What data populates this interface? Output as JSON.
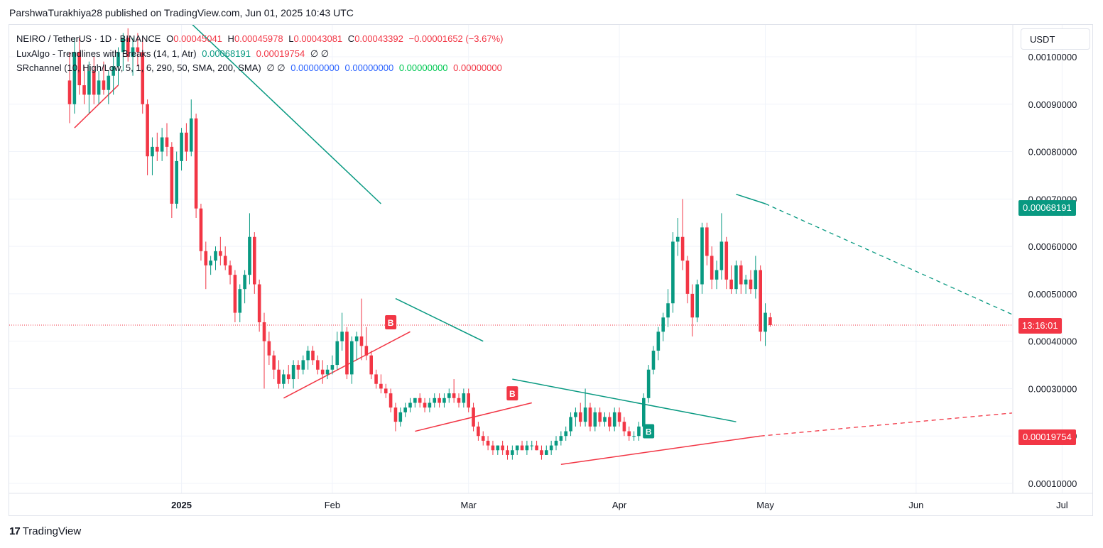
{
  "header": {
    "published_text": "ParshwaTurakhiya28 published on TradingView.com, Jun 01, 2025 10:43 UTC"
  },
  "legend": {
    "symbol": "NEIRO / TetherUS · 1D · BINANCE",
    "o_label": "O",
    "o_value": "0.00045041",
    "h_label": "H",
    "h_value": "0.00045978",
    "l_label": "L",
    "l_value": "0.00043081",
    "c_label": "C",
    "c_value": "0.00043392",
    "change": "−0.00001652 (−3.67%)",
    "indicator1_name": "LuxAlgo - Trendlines with Breaks (14, 1, Atr)",
    "indicator1_v1": "0.00068191",
    "indicator1_v2": "0.00019754",
    "indicator1_na": "∅ ∅",
    "indicator2_name": "SRchannel (10, High/Low, 5, 1, 6, 290, 50, SMA, 200, SMA)",
    "indicator2_na": "∅ ∅",
    "indicator2_v1": "0.00000000",
    "indicator2_v2": "0.00000000",
    "indicator2_v3": "0.00000000",
    "indicator2_v4": "0.00000000"
  },
  "currency": "USDT",
  "price_tags": {
    "upper_trendline": "0.00068191",
    "countdown": "13:16:01",
    "lower_trendline": "0.00019754"
  },
  "footer": {
    "brand": "TradingView",
    "brand_mark": "17"
  },
  "colors": {
    "up": "#089981",
    "down": "#f23645",
    "grid": "#f0f3fa",
    "teal_tag": "#089981",
    "red_tag": "#f23645"
  },
  "chart_data": {
    "type": "candlestick",
    "title": "NEIRO / TetherUS · 1D · BINANCE",
    "ylim": [
      7e-05,
      0.00106
    ],
    "y_ticks": [
      "0.00010000",
      "0.00020000",
      "0.00030000",
      "0.00040000",
      "0.00050000",
      "0.00060000",
      "0.00070000",
      "0.00080000",
      "0.00090000",
      "0.00100000"
    ],
    "y_tick_values": [
      0.0001,
      0.0002,
      0.0003,
      0.0004,
      0.0005,
      0.0006,
      0.0007,
      0.0008,
      0.0009,
      0.001
    ],
    "x_ticks": [
      {
        "label": "2025",
        "day": 23,
        "bold": true
      },
      {
        "label": "Feb",
        "day": 54,
        "bold": false
      },
      {
        "label": "Mar",
        "day": 82,
        "bold": false
      },
      {
        "label": "Apr",
        "day": 113,
        "bold": false
      },
      {
        "label": "May",
        "day": 143,
        "bold": false
      },
      {
        "label": "Jun",
        "day": 174,
        "bold": false
      },
      {
        "label": "Jul",
        "day": 204,
        "bold": false
      }
    ],
    "start_date": "2024-12-10",
    "current_price": 0.00043392,
    "candles": [
      [
        0.00095,
        0.00101,
        0.00086,
        0.0009
      ],
      [
        0.0009,
        0.00104,
        0.00088,
        0.00101
      ],
      [
        0.00101,
        0.00104,
        0.00092,
        0.00094
      ],
      [
        0.00094,
        0.00098,
        0.0009,
        0.00092
      ],
      [
        0.00092,
        0.00099,
        0.00088,
        0.00097
      ],
      [
        0.00097,
        0.001,
        0.0009,
        0.00092
      ],
      [
        0.00092,
        0.00097,
        0.0009,
        0.00095
      ],
      [
        0.00095,
        0.00099,
        0.00092,
        0.00093
      ],
      [
        0.00093,
        0.00097,
        0.0009,
        0.00096
      ],
      [
        0.00096,
        0.001,
        0.00092,
        0.00098
      ],
      [
        0.00098,
        0.00102,
        0.00094,
        0.00101
      ],
      [
        0.00101,
        0.00105,
        0.00097,
        0.00104
      ],
      [
        0.00104,
        0.00106,
        0.00099,
        0.001
      ],
      [
        0.001,
        0.00104,
        0.00096,
        0.00102
      ],
      [
        0.00102,
        0.00105,
        0.00098,
        0.00101
      ],
      [
        0.00101,
        0.00104,
        0.00088,
        0.0009
      ],
      [
        0.0009,
        0.00091,
        0.00075,
        0.00079
      ],
      [
        0.00079,
        0.00083,
        0.00075,
        0.00081
      ],
      [
        0.00081,
        0.00084,
        0.00078,
        0.0008
      ],
      [
        0.0008,
        0.00085,
        0.00078,
        0.00083
      ],
      [
        0.00083,
        0.00086,
        0.00079,
        0.00081
      ],
      [
        0.00081,
        0.00082,
        0.00066,
        0.00069
      ],
      [
        0.00069,
        0.0008,
        0.00068,
        0.00078
      ],
      [
        0.00078,
        0.00085,
        0.00076,
        0.00084
      ],
      [
        0.00084,
        0.00086,
        0.00078,
        0.0008
      ],
      [
        0.0008,
        0.00091,
        0.00079,
        0.00087
      ],
      [
        0.00087,
        0.00088,
        0.00066,
        0.00068
      ],
      [
        0.00068,
        0.00069,
        0.00057,
        0.00059
      ],
      [
        0.00059,
        0.00061,
        0.00051,
        0.00056
      ],
      [
        0.00056,
        0.00058,
        0.00054,
        0.00057
      ],
      [
        0.00057,
        0.0006,
        0.00055,
        0.00059
      ],
      [
        0.00059,
        0.00062,
        0.00056,
        0.00058
      ],
      [
        0.00058,
        0.0006,
        0.00055,
        0.00056
      ],
      [
        0.00056,
        0.00057,
        0.00052,
        0.00054
      ],
      [
        0.00054,
        0.00055,
        0.00044,
        0.00046
      ],
      [
        0.00046,
        0.00052,
        0.00044,
        0.00051
      ],
      [
        0.00051,
        0.00055,
        0.00048,
        0.00054
      ],
      [
        0.00054,
        0.00067,
        0.00052,
        0.00062
      ],
      [
        0.00062,
        0.00063,
        0.0005,
        0.00052
      ],
      [
        0.00052,
        0.00053,
        0.00042,
        0.00044
      ],
      [
        0.00044,
        0.00046,
        0.0003,
        0.0004
      ],
      [
        0.0004,
        0.00042,
        0.00035,
        0.00037
      ],
      [
        0.00037,
        0.00038,
        0.00032,
        0.00034
      ],
      [
        0.00034,
        0.00036,
        0.0003,
        0.00031
      ],
      [
        0.00031,
        0.00034,
        0.0003,
        0.00033
      ],
      [
        0.00033,
        0.00035,
        0.00031,
        0.00032
      ],
      [
        0.00032,
        0.00036,
        0.0003,
        0.00035
      ],
      [
        0.00035,
        0.00036,
        0.00032,
        0.00034
      ],
      [
        0.00034,
        0.00037,
        0.00033,
        0.00036
      ],
      [
        0.00036,
        0.00039,
        0.00034,
        0.00038
      ],
      [
        0.00038,
        0.00039,
        0.00035,
        0.00036
      ],
      [
        0.00036,
        0.00037,
        0.00033,
        0.00034
      ],
      [
        0.00034,
        0.00036,
        0.00031,
        0.00033
      ],
      [
        0.00033,
        0.00035,
        0.00032,
        0.00034
      ],
      [
        0.00034,
        0.00037,
        0.00033,
        0.00035
      ],
      [
        0.00035,
        0.00042,
        0.00034,
        0.0004
      ],
      [
        0.0004,
        0.00046,
        0.00038,
        0.00042
      ],
      [
        0.00042,
        0.00043,
        0.00032,
        0.00033
      ],
      [
        0.00033,
        0.00041,
        0.00031,
        0.0004
      ],
      [
        0.0004,
        0.00042,
        0.00036,
        0.00041
      ],
      [
        0.00041,
        0.00049,
        0.00036,
        0.00039
      ],
      [
        0.00039,
        0.00043,
        0.00036,
        0.00037
      ],
      [
        0.00037,
        0.00038,
        0.00032,
        0.00033
      ],
      [
        0.00033,
        0.00034,
        0.0003,
        0.00031
      ],
      [
        0.00031,
        0.00033,
        0.00029,
        0.0003
      ],
      [
        0.0003,
        0.00031,
        0.00028,
        0.00029
      ],
      [
        0.00029,
        0.0003,
        0.00025,
        0.00026
      ],
      [
        0.00026,
        0.00027,
        0.00021,
        0.00023
      ],
      [
        0.00023,
        0.00026,
        0.00022,
        0.00025
      ],
      [
        0.00025,
        0.00027,
        0.00024,
        0.00026
      ],
      [
        0.00026,
        0.00028,
        0.00025,
        0.00027
      ],
      [
        0.00027,
        0.00028,
        0.00026,
        0.00028
      ],
      [
        0.00028,
        0.00029,
        0.00026,
        0.00027
      ],
      [
        0.00027,
        0.00028,
        0.00025,
        0.00026
      ],
      [
        0.00026,
        0.00028,
        0.00025,
        0.00027
      ],
      [
        0.00027,
        0.00029,
        0.00026,
        0.00028
      ],
      [
        0.00028,
        0.00029,
        0.00026,
        0.00027
      ],
      [
        0.00027,
        0.00029,
        0.00026,
        0.00028
      ],
      [
        0.00028,
        0.0003,
        0.00027,
        0.00029
      ],
      [
        0.00029,
        0.00032,
        0.00027,
        0.00028
      ],
      [
        0.00028,
        0.00029,
        0.00026,
        0.00027
      ],
      [
        0.00027,
        0.0003,
        0.00026,
        0.00029
      ],
      [
        0.00029,
        0.0003,
        0.00025,
        0.00026
      ],
      [
        0.00026,
        0.00027,
        0.00021,
        0.00022
      ],
      [
        0.00022,
        0.00023,
        0.00019,
        0.0002
      ],
      [
        0.0002,
        0.00021,
        0.00018,
        0.00019
      ],
      [
        0.00019,
        0.0002,
        0.00017,
        0.00018
      ],
      [
        0.00018,
        0.00019,
        0.00016,
        0.00017
      ],
      [
        0.00017,
        0.00018,
        0.00016,
        0.00018
      ],
      [
        0.00018,
        0.00019,
        0.00016,
        0.00017
      ],
      [
        0.00017,
        0.00018,
        0.00015,
        0.00016
      ],
      [
        0.00016,
        0.00018,
        0.00015,
        0.00017
      ],
      [
        0.00017,
        0.00018,
        0.00016,
        0.00018
      ],
      [
        0.00018,
        0.00019,
        0.00017,
        0.00017
      ],
      [
        0.00017,
        0.00019,
        0.00016,
        0.00018
      ],
      [
        0.00018,
        0.00019,
        0.00017,
        0.00018
      ],
      [
        0.00018,
        0.00019,
        0.00017,
        0.00017
      ],
      [
        0.00017,
        0.00018,
        0.00015,
        0.00016
      ],
      [
        0.00016,
        0.00018,
        0.00016,
        0.00017
      ],
      [
        0.00017,
        0.00019,
        0.00016,
        0.00018
      ],
      [
        0.00018,
        0.0002,
        0.00017,
        0.00019
      ],
      [
        0.00019,
        0.00021,
        0.00018,
        0.0002
      ],
      [
        0.0002,
        0.00022,
        0.00019,
        0.00021
      ],
      [
        0.00021,
        0.00025,
        0.0002,
        0.00024
      ],
      [
        0.00024,
        0.00026,
        0.00022,
        0.00025
      ],
      [
        0.00025,
        0.00027,
        0.00022,
        0.00023
      ],
      [
        0.00023,
        0.0003,
        0.00022,
        0.00026
      ],
      [
        0.00026,
        0.00027,
        0.00021,
        0.00022
      ],
      [
        0.00022,
        0.00026,
        0.00021,
        0.00025
      ],
      [
        0.00025,
        0.00026,
        0.00022,
        0.00023
      ],
      [
        0.00023,
        0.00025,
        0.00022,
        0.00024
      ],
      [
        0.00024,
        0.00025,
        0.00021,
        0.00022
      ],
      [
        0.00022,
        0.00026,
        0.00021,
        0.00025
      ],
      [
        0.00025,
        0.00026,
        0.00022,
        0.00023
      ],
      [
        0.00023,
        0.00024,
        0.0002,
        0.00021
      ],
      [
        0.00021,
        0.00022,
        0.00019,
        0.0002
      ],
      [
        0.0002,
        0.00021,
        0.00019,
        0.0002
      ],
      [
        0.0002,
        0.00023,
        0.00019,
        0.00022
      ],
      [
        0.00022,
        0.00029,
        0.00021,
        0.00028
      ],
      [
        0.00028,
        0.00035,
        0.00027,
        0.00034
      ],
      [
        0.00034,
        0.00039,
        0.00033,
        0.00038
      ],
      [
        0.00038,
        0.00043,
        0.00036,
        0.00042
      ],
      [
        0.00042,
        0.00046,
        0.0004,
        0.00045
      ],
      [
        0.00045,
        0.00051,
        0.00043,
        0.00048
      ],
      [
        0.00048,
        0.00063,
        0.00046,
        0.00061
      ],
      [
        0.00061,
        0.00066,
        0.00058,
        0.00062
      ],
      [
        0.00062,
        0.0007,
        0.00055,
        0.00057
      ],
      [
        0.00057,
        0.00058,
        0.00048,
        0.0005
      ],
      [
        0.0005,
        0.00052,
        0.00041,
        0.00045
      ],
      [
        0.00045,
        0.00053,
        0.00044,
        0.00052
      ],
      [
        0.00052,
        0.00065,
        0.0005,
        0.00064
      ],
      [
        0.00064,
        0.00065,
        0.00056,
        0.00058
      ],
      [
        0.00058,
        0.0006,
        0.00051,
        0.00053
      ],
      [
        0.00053,
        0.00057,
        0.00051,
        0.00055
      ],
      [
        0.00055,
        0.00067,
        0.00053,
        0.00061
      ],
      [
        0.00061,
        0.00062,
        0.00051,
        0.00053
      ],
      [
        0.00053,
        0.00056,
        0.0005,
        0.00051
      ],
      [
        0.00051,
        0.00057,
        0.0005,
        0.00056
      ],
      [
        0.00056,
        0.00057,
        0.0005,
        0.00052
      ],
      [
        0.00052,
        0.00054,
        0.0005,
        0.00053
      ],
      [
        0.00053,
        0.00055,
        0.0005,
        0.00051
      ],
      [
        0.00051,
        0.00058,
        0.00049,
        0.00055
      ],
      [
        0.00055,
        0.00056,
        0.0004,
        0.00042
      ],
      [
        0.00042,
        0.00048,
        0.00039,
        0.00046
      ],
      [
        0.00045041,
        0.00045978,
        0.00043081,
        0.00043392
      ]
    ],
    "trendlines": [
      {
        "color": "#f23645",
        "points": [
          [
            1,
            0.00085
          ],
          [
            10,
            0.00094
          ]
        ]
      },
      {
        "color": "#089981",
        "points": [
          [
            24,
            0.00108
          ],
          [
            64,
            0.00069
          ]
        ]
      },
      {
        "color": "#f23645",
        "points": [
          [
            44,
            0.00028
          ],
          [
            70,
            0.00042
          ]
        ]
      },
      {
        "color": "#089981",
        "points": [
          [
            67,
            0.00049
          ],
          [
            85,
            0.0004
          ]
        ]
      },
      {
        "color": "#f23645",
        "points": [
          [
            71,
            0.00021
          ],
          [
            95,
            0.00027
          ]
        ]
      },
      {
        "color": "#089981",
        "points": [
          [
            91,
            0.00032
          ],
          [
            137,
            0.00023
          ]
        ]
      },
      {
        "color": "#f23645",
        "points": [
          [
            101,
            0.00014
          ],
          [
            142,
            0.0002
          ]
        ]
      },
      {
        "color": "#089981",
        "points": [
          [
            137,
            0.00071
          ],
          [
            143,
            0.00069
          ]
        ]
      }
    ],
    "dashed_trendlines": [
      {
        "color": "#089981",
        "points": [
          [
            143,
            0.00069
          ],
          [
            206,
            0.0004
          ]
        ]
      },
      {
        "color": "#f23645",
        "points": [
          [
            142,
            0.0002
          ],
          [
            206,
            0.00026
          ]
        ]
      }
    ],
    "break_markers": [
      {
        "label": "B",
        "day": 66,
        "price": 0.00044,
        "color": "#f23645"
      },
      {
        "label": "B",
        "day": 91,
        "price": 0.00029,
        "color": "#f23645"
      },
      {
        "label": "B",
        "day": 119,
        "price": 0.00021,
        "color": "#089981"
      }
    ]
  }
}
